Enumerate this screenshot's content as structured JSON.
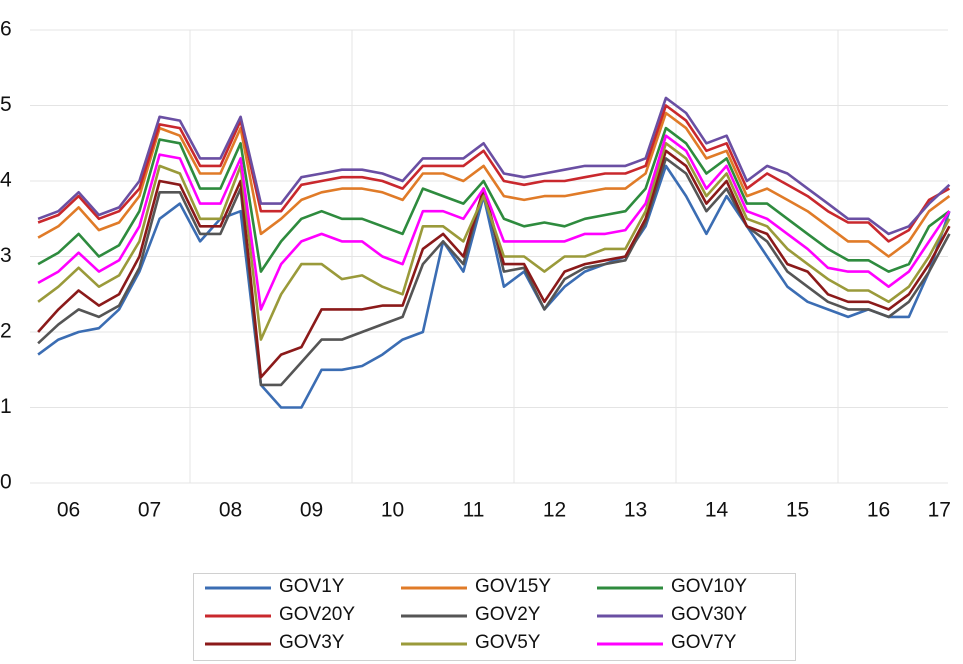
{
  "chart_data": {
    "type": "line",
    "x": [
      2006.125,
      2006.375,
      2006.625,
      2006.875,
      2007.125,
      2007.375,
      2007.625,
      2007.875,
      2008.125,
      2008.375,
      2008.625,
      2008.875,
      2009.125,
      2009.375,
      2009.625,
      2009.875,
      2010.125,
      2010.375,
      2010.625,
      2010.875,
      2011.125,
      2011.375,
      2011.625,
      2011.875,
      2012.125,
      2012.375,
      2012.625,
      2012.875,
      2013.125,
      2013.375,
      2013.625,
      2013.875,
      2014.125,
      2014.375,
      2014.625,
      2014.875,
      2015.125,
      2015.375,
      2015.625,
      2015.875,
      2016.125,
      2016.375,
      2016.625,
      2016.875,
      2017.125,
      2017.375
    ],
    "series": [
      {
        "name": "GOV1Y",
        "color": "#3b6db3",
        "values": [
          1.7,
          1.9,
          2.0,
          2.05,
          2.3,
          2.8,
          3.5,
          3.7,
          3.2,
          3.5,
          3.6,
          1.3,
          1.0,
          1.0,
          1.5,
          1.5,
          1.55,
          1.7,
          1.9,
          2.0,
          3.2,
          2.8,
          3.8,
          2.6,
          2.8,
          2.3,
          2.6,
          2.8,
          2.9,
          3.0,
          3.4,
          4.2,
          3.8,
          3.3,
          3.8,
          3.4,
          3.0,
          2.6,
          2.4,
          2.3,
          2.2,
          2.3,
          2.2,
          2.2,
          2.8,
          3.6
        ]
      },
      {
        "name": "GOV15Y",
        "color": "#e07b28",
        "values": [
          3.25,
          3.4,
          3.65,
          3.35,
          3.45,
          3.8,
          4.7,
          4.6,
          4.1,
          4.1,
          4.7,
          3.3,
          3.5,
          3.75,
          3.85,
          3.9,
          3.9,
          3.85,
          3.75,
          4.1,
          4.1,
          4.0,
          4.2,
          3.8,
          3.75,
          3.8,
          3.8,
          3.85,
          3.9,
          3.9,
          4.1,
          4.9,
          4.7,
          4.3,
          4.4,
          3.8,
          3.9,
          3.75,
          3.6,
          3.4,
          3.2,
          3.2,
          3.0,
          3.2,
          3.6,
          3.8
        ]
      },
      {
        "name": "GOV10Y",
        "color": "#2e8b3e",
        "values": [
          2.9,
          3.05,
          3.3,
          3.0,
          3.15,
          3.6,
          4.55,
          4.5,
          3.9,
          3.9,
          4.5,
          2.8,
          3.2,
          3.5,
          3.6,
          3.5,
          3.5,
          3.4,
          3.3,
          3.9,
          3.8,
          3.7,
          4.0,
          3.5,
          3.4,
          3.45,
          3.4,
          3.5,
          3.55,
          3.6,
          3.9,
          4.7,
          4.5,
          4.1,
          4.3,
          3.7,
          3.7,
          3.5,
          3.3,
          3.1,
          2.95,
          2.95,
          2.8,
          2.9,
          3.4,
          3.6
        ]
      },
      {
        "name": "GOV20Y",
        "color": "#c9282d",
        "values": [
          3.45,
          3.55,
          3.8,
          3.5,
          3.6,
          3.9,
          4.75,
          4.7,
          4.2,
          4.2,
          4.8,
          3.6,
          3.6,
          3.95,
          4.0,
          4.05,
          4.05,
          4.0,
          3.9,
          4.2,
          4.2,
          4.2,
          4.4,
          4.0,
          3.95,
          4.0,
          4.0,
          4.05,
          4.1,
          4.1,
          4.2,
          5.0,
          4.8,
          4.4,
          4.5,
          3.9,
          4.1,
          3.95,
          3.8,
          3.6,
          3.45,
          3.45,
          3.2,
          3.35,
          3.75,
          3.9
        ]
      },
      {
        "name": "GOV2Y",
        "color": "#555555",
        "values": [
          1.85,
          2.1,
          2.3,
          2.2,
          2.35,
          2.85,
          3.85,
          3.85,
          3.3,
          3.3,
          3.9,
          1.3,
          1.3,
          1.6,
          1.9,
          1.9,
          2.0,
          2.1,
          2.2,
          2.9,
          3.2,
          2.9,
          3.9,
          2.8,
          2.85,
          2.3,
          2.7,
          2.85,
          2.9,
          2.95,
          3.45,
          4.3,
          4.1,
          3.6,
          3.9,
          3.4,
          3.2,
          2.8,
          2.6,
          2.4,
          2.3,
          2.3,
          2.2,
          2.4,
          2.8,
          3.3
        ]
      },
      {
        "name": "GOV30Y",
        "color": "#6a4fa3",
        "values": [
          3.5,
          3.6,
          3.85,
          3.55,
          3.65,
          4.0,
          4.85,
          4.8,
          4.3,
          4.3,
          4.85,
          3.7,
          3.7,
          4.05,
          4.1,
          4.15,
          4.15,
          4.1,
          4.0,
          4.3,
          4.3,
          4.3,
          4.5,
          4.1,
          4.05,
          4.1,
          4.15,
          4.2,
          4.2,
          4.2,
          4.3,
          5.1,
          4.9,
          4.5,
          4.6,
          4.0,
          4.2,
          4.1,
          3.9,
          3.7,
          3.5,
          3.5,
          3.3,
          3.4,
          3.7,
          3.95
        ]
      },
      {
        "name": "GOV3Y",
        "color": "#8b1a1a",
        "values": [
          2.0,
          2.3,
          2.55,
          2.35,
          2.5,
          3.0,
          4.0,
          3.95,
          3.4,
          3.4,
          4.0,
          1.4,
          1.7,
          1.8,
          2.3,
          2.3,
          2.3,
          2.35,
          2.35,
          3.1,
          3.3,
          3.0,
          3.9,
          2.9,
          2.9,
          2.4,
          2.8,
          2.9,
          2.95,
          3.0,
          3.5,
          4.4,
          4.2,
          3.7,
          4.0,
          3.4,
          3.3,
          2.9,
          2.8,
          2.5,
          2.4,
          2.4,
          2.3,
          2.5,
          2.9,
          3.4
        ]
      },
      {
        "name": "GOV5Y",
        "color": "#9a9a3a",
        "values": [
          2.4,
          2.6,
          2.85,
          2.6,
          2.75,
          3.2,
          4.2,
          4.1,
          3.5,
          3.5,
          4.2,
          1.9,
          2.5,
          2.9,
          2.9,
          2.7,
          2.75,
          2.6,
          2.5,
          3.4,
          3.4,
          3.2,
          3.8,
          3.0,
          3.0,
          2.8,
          3.0,
          3.0,
          3.1,
          3.1,
          3.6,
          4.5,
          4.3,
          3.8,
          4.1,
          3.5,
          3.4,
          3.1,
          2.9,
          2.7,
          2.55,
          2.55,
          2.4,
          2.6,
          3.0,
          3.5
        ]
      },
      {
        "name": "GOV7Y",
        "color": "#ff00ff",
        "values": [
          2.65,
          2.8,
          3.05,
          2.8,
          2.95,
          3.4,
          4.35,
          4.3,
          3.7,
          3.7,
          4.3,
          2.3,
          2.9,
          3.2,
          3.3,
          3.2,
          3.2,
          3.0,
          2.9,
          3.6,
          3.6,
          3.5,
          3.9,
          3.2,
          3.2,
          3.2,
          3.2,
          3.3,
          3.3,
          3.35,
          3.7,
          4.6,
          4.4,
          3.9,
          4.2,
          3.6,
          3.5,
          3.3,
          3.1,
          2.85,
          2.8,
          2.8,
          2.6,
          2.8,
          3.2,
          3.6
        ]
      }
    ],
    "xlim": [
      2006,
      2017.5
    ],
    "xticks": [
      {
        "value": 2006.5,
        "label": "06"
      },
      {
        "value": 2007.5,
        "label": "07"
      },
      {
        "value": 2008.5,
        "label": "08"
      },
      {
        "value": 2009.5,
        "label": "09"
      },
      {
        "value": 2010.5,
        "label": "10"
      },
      {
        "value": 2011.5,
        "label": "11"
      },
      {
        "value": 2012.5,
        "label": "12"
      },
      {
        "value": 2013.5,
        "label": "13"
      },
      {
        "value": 2014.5,
        "label": "14"
      },
      {
        "value": 2015.5,
        "label": "15"
      },
      {
        "value": 2016.5,
        "label": "16"
      },
      {
        "value": 2017.25,
        "label": "17"
      }
    ],
    "xgrid": [
      2008,
      2010,
      2012,
      2014,
      2016
    ],
    "ylim": [
      0,
      6
    ],
    "yticks": [
      0,
      1,
      2,
      3,
      4,
      5,
      6
    ],
    "grid": true,
    "legend": "bottom"
  }
}
